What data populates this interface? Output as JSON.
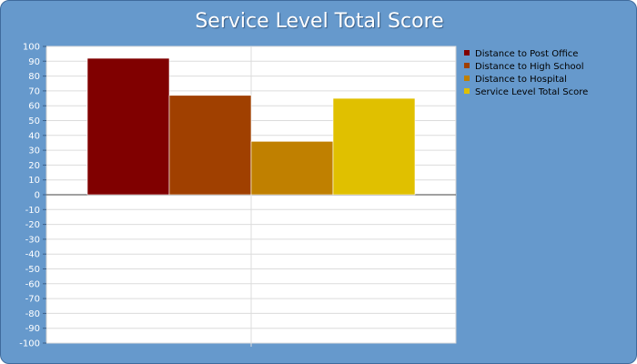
{
  "colors": {
    "background": "#6699cc",
    "plot_background": "#ffffff",
    "grid": "#dcdcdc"
  },
  "chart_data": {
    "type": "bar",
    "title": "Service Level Total Score",
    "xlabel": "",
    "ylabel": "",
    "ylim": [
      -100,
      100
    ],
    "yticks": [
      100,
      90,
      80,
      70,
      60,
      50,
      40,
      30,
      20,
      10,
      0,
      -10,
      -20,
      -30,
      -40,
      -50,
      -60,
      -70,
      -80,
      -90,
      -100
    ],
    "grid": true,
    "legend_position": "right",
    "series": [
      {
        "name": "Distance to Post Office",
        "value": 92,
        "color": "#800000"
      },
      {
        "name": "Distance to High School",
        "value": 67,
        "color": "#a04000"
      },
      {
        "name": "Distance to Hospital",
        "value": 36,
        "color": "#c08000"
      },
      {
        "name": "Service Level Total Score",
        "value": 65,
        "color": "#e0c000"
      }
    ]
  }
}
